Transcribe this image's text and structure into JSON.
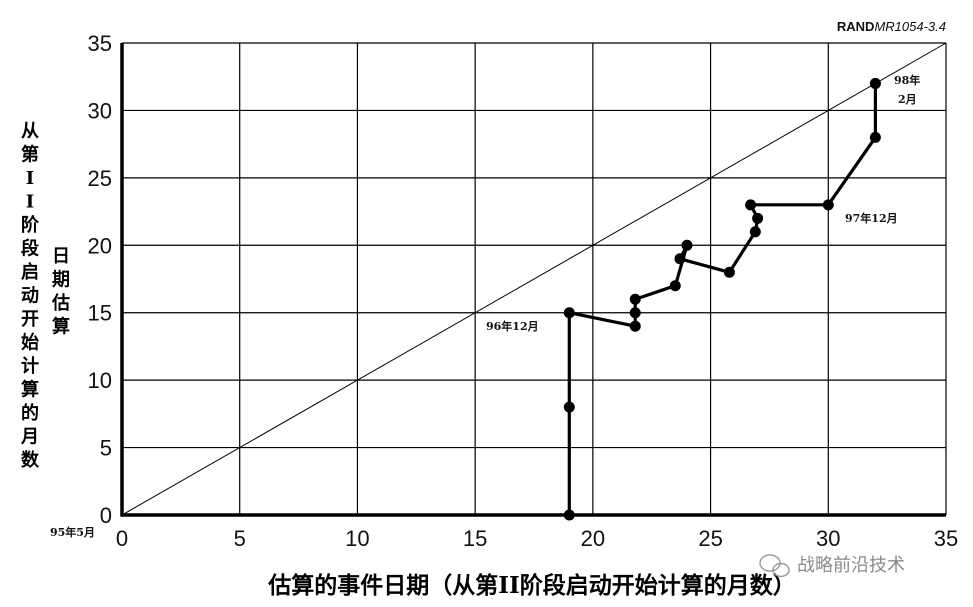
{
  "chart_data": {
    "type": "line",
    "source_label_bold": "RAND",
    "source_label_italic": "MR1054-3.4",
    "xlabel": "估算的事件日期（从第II阶段启动开始计算的月数）",
    "ylabel_outer": "从第II阶段启动开始计算的月数",
    "ylabel_inner": "日期估算",
    "xlim": [
      0,
      35
    ],
    "ylim": [
      0,
      35
    ],
    "xticks": [
      0,
      5,
      10,
      15,
      20,
      25,
      30,
      35
    ],
    "yticks": [
      0,
      5,
      10,
      15,
      20,
      25,
      30,
      35
    ],
    "grid": true,
    "reference_line": {
      "from": [
        0,
        0
      ],
      "to": [
        35,
        35
      ]
    },
    "series": [
      {
        "x": [
          19,
          19,
          19,
          21.8,
          21.8,
          21.8,
          23.5,
          24,
          23.7,
          25.8,
          26.9,
          27,
          26.7,
          30,
          32,
          32,
          32
        ],
        "y": [
          0,
          8,
          15,
          14,
          15,
          16,
          17,
          20,
          19,
          18,
          21,
          22,
          23,
          23,
          28,
          32,
          32
        ]
      }
    ],
    "annotations": {
      "origin": "95年5月",
      "dec96": "96年12月",
      "dec97": "97年12月",
      "feb98_line1": "98年",
      "feb98_line2": "2月"
    }
  },
  "watermark": {
    "text": "战略前沿技术"
  }
}
